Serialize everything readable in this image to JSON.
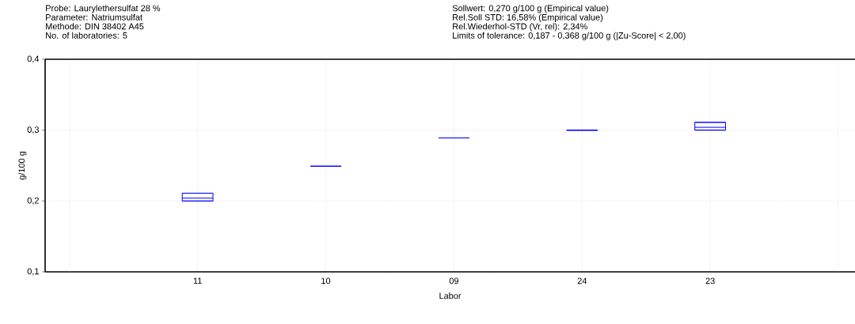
{
  "chart_data": {
    "type": "box",
    "xlabel": "Labor",
    "ylabel": "g/100 g",
    "categories": [
      "11",
      "10",
      "09",
      "24",
      "23"
    ],
    "boxes": [
      {
        "low": 0.2,
        "q1": 0.2,
        "median": 0.204,
        "q3": 0.211,
        "high": 0.211
      },
      {
        "low": 0.249,
        "q1": 0.249,
        "median": 0.249,
        "q3": 0.249,
        "high": 0.249
      },
      {
        "low": 0.289,
        "q1": 0.289,
        "median": 0.289,
        "q3": 0.289,
        "high": 0.289
      },
      {
        "low": 0.3,
        "q1": 0.3,
        "median": 0.3,
        "q3": 0.3,
        "high": 0.3
      },
      {
        "low": 0.3,
        "q1": 0.3,
        "median": 0.304,
        "q3": 0.311,
        "high": 0.311
      }
    ],
    "color": "#0000ff",
    "ylim": [
      0.1,
      0.4
    ],
    "yticks": [
      {
        "value": 0.1,
        "label": "0,1"
      },
      {
        "value": 0.2,
        "label": "0,2"
      },
      {
        "value": 0.3,
        "label": "0,3"
      },
      {
        "value": 0.4,
        "label": "0,4"
      }
    ],
    "grid": true,
    "annotations": [
      "Probe: Laurylethersulfat 28 %",
      "Parameter: Natriumsulfat",
      "Methode: DIN 38402 A45",
      "No. of laboratories: 5",
      "Sollwert: 0,270 g/100 g (Empirical value)",
      "Rel.Soll STD: 16,58% (Empirical value)",
      "Rel.Wiederhol-STD (Vr, rel): 2,34%",
      "Limits of tolerance: 0,187 - 0,368 g/100 g   (|Zu-Score| < 2,00)"
    ]
  }
}
